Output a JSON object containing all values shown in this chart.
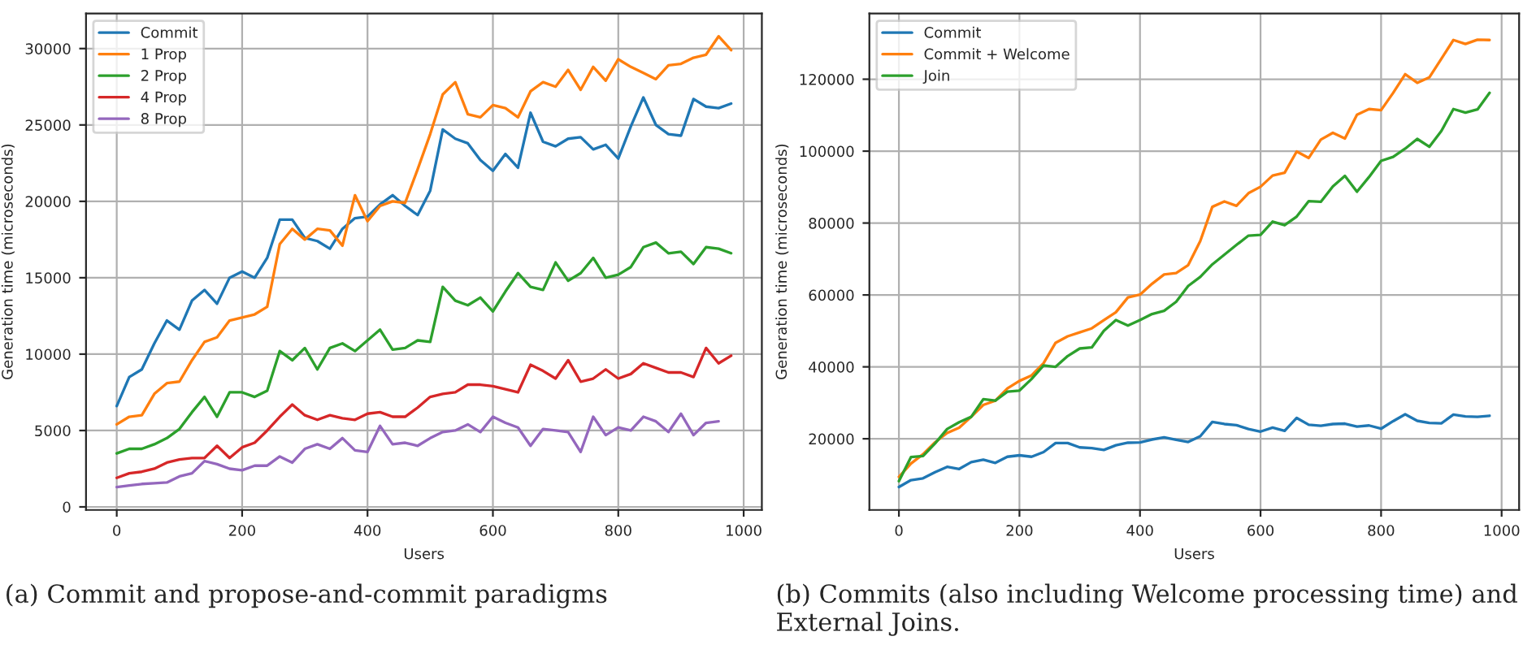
{
  "chart_data": [
    {
      "type": "line",
      "xlabel": "Users",
      "ylabel": "Generation time (microseconds)",
      "x": [
        0,
        20,
        40,
        60,
        80,
        100,
        120,
        140,
        160,
        180,
        200,
        220,
        240,
        260,
        280,
        300,
        320,
        340,
        360,
        380,
        400,
        420,
        440,
        460,
        480,
        500,
        520,
        540,
        560,
        580,
        600,
        620,
        640,
        660,
        680,
        700,
        720,
        740,
        760,
        780,
        800,
        820,
        840,
        860,
        880,
        900,
        920,
        940,
        960,
        980
      ],
      "series": [
        {
          "name": "Commit",
          "color": "#1f77b4",
          "values": [
            6600,
            8500,
            9000,
            10700,
            12200,
            11600,
            13500,
            14200,
            13300,
            15000,
            15400,
            15000,
            16300,
            18800,
            18800,
            17600,
            17400,
            16900,
            18200,
            18900,
            19000,
            19800,
            20400,
            19700,
            19100,
            20700,
            24700,
            24100,
            23800,
            22700,
            22000,
            23100,
            22200,
            25800,
            23900,
            23600,
            24100,
            24200,
            23400,
            23700,
            22800,
            24900,
            26800,
            25000,
            24400,
            24300,
            26700,
            26200,
            26100,
            26400
          ]
        },
        {
          "name": "1 Prop",
          "color": "#ff7f0e",
          "values": [
            5400,
            5900,
            6000,
            7400,
            8100,
            8200,
            9600,
            10800,
            11100,
            12200,
            12400,
            12600,
            13100,
            17200,
            18200,
            17500,
            18200,
            18100,
            17100,
            20400,
            18700,
            19700,
            20000,
            19900,
            22100,
            24400,
            27000,
            27800,
            25700,
            25500,
            26300,
            26100,
            25500,
            27200,
            27800,
            27500,
            28600,
            27300,
            28800,
            27900,
            29300,
            28800,
            28400,
            28000,
            28900,
            29000,
            29400,
            29600,
            30800,
            29900
          ]
        },
        {
          "name": "2 Prop",
          "color": "#2ca02c",
          "values": [
            3500,
            3800,
            3800,
            4100,
            4500,
            5100,
            6200,
            7200,
            5900,
            7500,
            7500,
            7200,
            7600,
            10200,
            9600,
            10400,
            9000,
            10400,
            10700,
            10200,
            10900,
            11600,
            10300,
            10400,
            10900,
            10800,
            14400,
            13500,
            13200,
            13700,
            12800,
            14100,
            15300,
            14400,
            14200,
            16000,
            14800,
            15300,
            16300,
            15000,
            15200,
            15700,
            17000,
            17300,
            16600,
            16700,
            15900,
            17000,
            16900,
            16600
          ]
        },
        {
          "name": "4 Prop",
          "color": "#d62728",
          "values": [
            1900,
            2200,
            2300,
            2500,
            2900,
            3100,
            3200,
            3200,
            4000,
            3200,
            3900,
            4200,
            5000,
            5900,
            6700,
            6000,
            5700,
            6000,
            5800,
            5700,
            6100,
            6200,
            5900,
            5900,
            6500,
            7200,
            7400,
            7500,
            8000,
            8000,
            7900,
            7700,
            7500,
            9300,
            8900,
            8400,
            9600,
            8200,
            8400,
            9000,
            8400,
            8700,
            9400,
            9100,
            8800,
            8800,
            8500,
            10400,
            9400,
            9900
          ]
        },
        {
          "name": "8 Prop",
          "color": "#9467bd",
          "values": [
            1300,
            1400,
            1500,
            1550,
            1600,
            2000,
            2200,
            3000,
            2800,
            2500,
            2400,
            2700,
            2700,
            3300,
            2900,
            3800,
            4100,
            3800,
            4500,
            3700,
            3600,
            5300,
            4100,
            4200,
            4000,
            4500,
            4900,
            5000,
            5400,
            4900,
            5900,
            5500,
            5200,
            4000,
            5100,
            5000,
            4900,
            3600,
            5900,
            4700,
            5200,
            5000,
            5900,
            5600,
            4900,
            6100,
            4700,
            5500,
            5600,
            null
          ]
        }
      ],
      "xlim": [
        -49,
        1029
      ],
      "ylim": [
        -200,
        32300
      ],
      "xticks": [
        0,
        200,
        400,
        600,
        800,
        1000
      ],
      "yticks": [
        0,
        5000,
        10000,
        15000,
        20000,
        25000,
        30000
      ],
      "grid": true,
      "legend": "top left",
      "annotations": [
        "(a) Commit and propose-and-commit paradigms"
      ]
    },
    {
      "type": "line",
      "xlabel": "Users",
      "ylabel": "Generation time (microseconds)",
      "x": [
        0,
        20,
        40,
        60,
        80,
        100,
        120,
        140,
        160,
        180,
        200,
        220,
        240,
        260,
        280,
        300,
        320,
        340,
        360,
        380,
        400,
        420,
        440,
        460,
        480,
        500,
        520,
        540,
        560,
        580,
        600,
        620,
        640,
        660,
        680,
        700,
        720,
        740,
        760,
        780,
        800,
        820,
        840,
        860,
        880,
        900,
        920,
        940,
        960,
        980
      ],
      "series": [
        {
          "name": "Commit",
          "color": "#1f77b4",
          "values": [
            6600,
            8500,
            9000,
            10700,
            12200,
            11600,
            13500,
            14200,
            13300,
            15000,
            15400,
            15000,
            16300,
            18800,
            18800,
            17600,
            17400,
            16900,
            18200,
            18900,
            19000,
            19800,
            20400,
            19700,
            19100,
            20700,
            24700,
            24100,
            23800,
            22700,
            22000,
            23100,
            22200,
            25800,
            23900,
            23600,
            24100,
            24200,
            23400,
            23700,
            22800,
            24900,
            26800,
            25000,
            24400,
            24300,
            26700,
            26200,
            26100,
            26400
          ]
        },
        {
          "name": "Commit + Welcome",
          "color": "#ff7f0e",
          "values": [
            9400,
            13100,
            15700,
            19000,
            21600,
            23100,
            26100,
            29400,
            30600,
            34000,
            36100,
            37600,
            41000,
            46700,
            48500,
            49600,
            50700,
            53000,
            55200,
            59300,
            60100,
            63100,
            65700,
            66100,
            68300,
            75000,
            84500,
            86000,
            84800,
            88300,
            90100,
            93200,
            94000,
            99900,
            98100,
            103200,
            105100,
            103500,
            110100,
            111700,
            111400,
            116200,
            121400,
            119000,
            120500,
            125700,
            130900,
            129800,
            131000,
            130900
          ]
        },
        {
          "name": "Join",
          "color": "#2ca02c",
          "values": [
            8200,
            14900,
            15200,
            18700,
            22700,
            24600,
            26100,
            31000,
            30600,
            33100,
            33400,
            36600,
            40400,
            40000,
            43000,
            45100,
            45400,
            50000,
            53000,
            51500,
            53000,
            54700,
            55600,
            58100,
            62500,
            65000,
            68500,
            71200,
            73900,
            76500,
            76700,
            80400,
            79400,
            81800,
            86100,
            85900,
            90200,
            93100,
            88700,
            92800,
            97300,
            98400,
            100700,
            103400,
            101200,
            105600,
            111700,
            110700,
            111600,
            116200
          ]
        }
      ],
      "xlim": [
        -49,
        1029
      ],
      "ylim": [
        200,
        138300
      ],
      "xticks": [
        0,
        200,
        400,
        600,
        800,
        1000
      ],
      "yticks": [
        20000,
        40000,
        60000,
        80000,
        100000,
        120000
      ],
      "grid": true,
      "legend": "top left",
      "annotations": [
        "(b) Commits (also including Welcome processing time) and External Joins."
      ]
    }
  ]
}
